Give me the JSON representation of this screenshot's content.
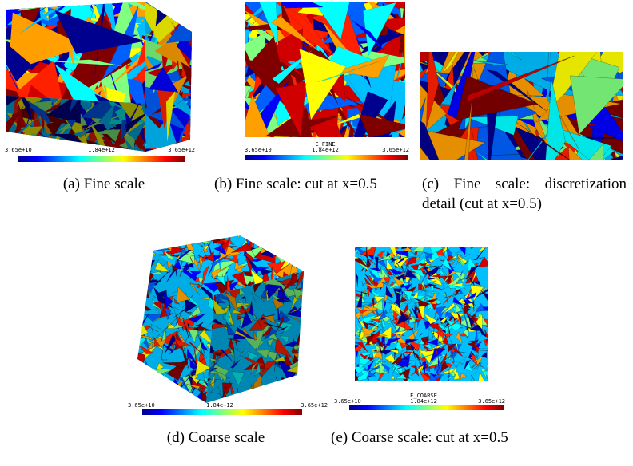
{
  "panels": [
    {
      "colorbar": {
        "min": "3.65e+10",
        "mid": "1.84e+12",
        "max": "3.65e+12"
      },
      "caption": "(a) Fine scale"
    },
    {
      "field": "E_FINE",
      "colorbar": {
        "min": "3.65e+10",
        "mid": "1.84e+12",
        "max": "3.65e+12"
      },
      "caption": "(b) Fine scale: cut at x=0.5"
    },
    {
      "caption": "(c) Fine scale: discretization detail (cut at x=0.5)"
    },
    {
      "colorbar": {
        "min": "3.65e+10",
        "mid": "1.84e+12",
        "max": "3.65e+12"
      },
      "caption": "(d) Coarse scale"
    },
    {
      "field": "E_COARSE",
      "colorbar": {
        "min": "3.65e+10",
        "mid": "1.84e+12",
        "max": "3.65e+12"
      },
      "caption": "(e) Coarse scale: cut at x=0.5"
    }
  ]
}
